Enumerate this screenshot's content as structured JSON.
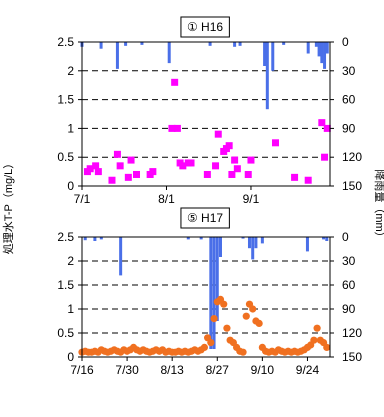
{
  "y_left_label": "処理水T-P（mg/L）",
  "y_right_label": "降雨量（mm）",
  "colors": {
    "rain": "#4A6FE8",
    "h16_points": "#FF00FF",
    "h17_points": "#F07020",
    "grid": "#000000"
  },
  "chart_data": [
    {
      "type": "scatter",
      "title": "① H16",
      "xlabel": "",
      "x_tick_labels": [
        "7/1",
        "8/1",
        "9/1"
      ],
      "x_tick_dates": [
        "2004-07-01",
        "2004-08-01",
        "2004-09-01"
      ],
      "xlim": [
        "2004-07-01",
        "2004-09-30"
      ],
      "ylim_left": [
        0,
        2.5
      ],
      "left_tick_labels": [
        "0",
        "0.5",
        "1",
        "1.5",
        "2",
        "2.5"
      ],
      "ylim_right_inverted": [
        0,
        150
      ],
      "right_tick_labels": [
        "0",
        "30",
        "60",
        "90",
        "120",
        "150"
      ],
      "grid": "dashed horizontal",
      "series": [
        {
          "kind": "points",
          "values": [
            [
              "2004-07-03",
              0.25
            ],
            [
              "2004-07-04",
              0.3
            ],
            [
              "2004-07-06",
              0.35
            ],
            [
              "2004-07-07",
              0.25
            ],
            [
              "2004-07-12",
              0.1
            ],
            [
              "2004-07-14",
              0.55
            ],
            [
              "2004-07-15",
              0.35
            ],
            [
              "2004-07-18",
              0.15
            ],
            [
              "2004-07-19",
              0.45
            ],
            [
              "2004-07-21",
              0.2
            ],
            [
              "2004-07-26",
              0.2
            ],
            [
              "2004-07-27",
              0.25
            ],
            [
              "2004-08-03",
              1.0
            ],
            [
              "2004-08-04",
              1.8
            ],
            [
              "2004-08-05",
              1.0
            ],
            [
              "2004-08-06",
              0.4
            ],
            [
              "2004-08-07",
              0.35
            ],
            [
              "2004-08-09",
              0.4
            ],
            [
              "2004-08-10",
              0.4
            ],
            [
              "2004-08-16",
              0.2
            ],
            [
              "2004-08-19",
              0.35
            ],
            [
              "2004-08-20",
              0.9
            ],
            [
              "2004-08-22",
              0.6
            ],
            [
              "2004-08-23",
              0.65
            ],
            [
              "2004-08-24",
              0.7
            ],
            [
              "2004-08-25",
              0.2
            ],
            [
              "2004-08-26",
              0.45
            ],
            [
              "2004-08-27",
              0.3
            ],
            [
              "2004-08-31",
              0.2
            ],
            [
              "2004-09-01",
              0.45
            ],
            [
              "2004-09-10",
              0.75
            ],
            [
              "2004-09-17",
              0.15
            ],
            [
              "2004-09-22",
              0.1
            ],
            [
              "2004-09-27",
              1.1
            ],
            [
              "2004-09-28",
              0.5
            ],
            [
              "2004-09-29",
              1.0
            ]
          ]
        },
        {
          "kind": "rain_bars_mm",
          "values": [
            [
              "2004-07-01",
              5
            ],
            [
              "2004-07-08",
              7
            ],
            [
              "2004-07-14",
              28
            ],
            [
              "2004-07-17",
              4
            ],
            [
              "2004-07-23",
              3
            ],
            [
              "2004-08-02",
              22
            ],
            [
              "2004-08-17",
              4
            ],
            [
              "2004-08-26",
              5
            ],
            [
              "2004-08-28",
              4
            ],
            [
              "2004-09-06",
              25
            ],
            [
              "2004-09-07",
              70
            ],
            [
              "2004-09-09",
              30
            ],
            [
              "2004-09-13",
              3
            ],
            [
              "2004-09-22",
              12
            ],
            [
              "2004-09-25",
              5
            ],
            [
              "2004-09-26",
              15
            ],
            [
              "2004-09-27",
              22
            ],
            [
              "2004-09-28",
              28
            ],
            [
              "2004-09-29",
              12
            ]
          ]
        }
      ]
    },
    {
      "type": "scatter",
      "title": "⑤ H17",
      "xlabel": "",
      "x_tick_labels": [
        "7/16",
        "7/30",
        "8/13",
        "8/27",
        "9/10",
        "9/24"
      ],
      "x_tick_dates": [
        "2005-07-16",
        "2005-07-30",
        "2005-08-13",
        "2005-08-27",
        "2005-09-10",
        "2005-09-24"
      ],
      "xlim": [
        "2005-07-16",
        "2005-10-01"
      ],
      "ylim_left": [
        0,
        2.5
      ],
      "left_tick_labels": [
        "0",
        "0.5",
        "1",
        "1.5",
        "2",
        "2.5"
      ],
      "ylim_right_inverted": [
        0,
        150
      ],
      "right_tick_labels": [
        "0",
        "30",
        "60",
        "90",
        "120",
        "150"
      ],
      "grid": "dashed horizontal",
      "series": [
        {
          "kind": "points",
          "values": [
            [
              "2005-07-16",
              0.1
            ],
            [
              "2005-07-17",
              0.12
            ],
            [
              "2005-07-18",
              0.1
            ],
            [
              "2005-07-19",
              0.1
            ],
            [
              "2005-07-20",
              0.12
            ],
            [
              "2005-07-21",
              0.1
            ],
            [
              "2005-07-22",
              0.15
            ],
            [
              "2005-07-23",
              0.12
            ],
            [
              "2005-07-24",
              0.1
            ],
            [
              "2005-07-25",
              0.12
            ],
            [
              "2005-07-26",
              0.15
            ],
            [
              "2005-07-27",
              0.12
            ],
            [
              "2005-07-28",
              0.1
            ],
            [
              "2005-07-29",
              0.15
            ],
            [
              "2005-07-30",
              0.12
            ],
            [
              "2005-07-31",
              0.15
            ],
            [
              "2005-08-01",
              0.2
            ],
            [
              "2005-08-02",
              0.15
            ],
            [
              "2005-08-03",
              0.12
            ],
            [
              "2005-08-04",
              0.15
            ],
            [
              "2005-08-05",
              0.12
            ],
            [
              "2005-08-06",
              0.1
            ],
            [
              "2005-08-07",
              0.12
            ],
            [
              "2005-08-08",
              0.15
            ],
            [
              "2005-08-09",
              0.12
            ],
            [
              "2005-08-10",
              0.15
            ],
            [
              "2005-08-11",
              0.1
            ],
            [
              "2005-08-12",
              0.12
            ],
            [
              "2005-08-13",
              0.1
            ],
            [
              "2005-08-14",
              0.1
            ],
            [
              "2005-08-15",
              0.12
            ],
            [
              "2005-08-16",
              0.1
            ],
            [
              "2005-08-17",
              0.12
            ],
            [
              "2005-08-18",
              0.1
            ],
            [
              "2005-08-19",
              0.12
            ],
            [
              "2005-08-20",
              0.15
            ],
            [
              "2005-08-21",
              0.12
            ],
            [
              "2005-08-22",
              0.15
            ],
            [
              "2005-08-23",
              0.2
            ],
            [
              "2005-08-24",
              0.4
            ],
            [
              "2005-08-25",
              0.3
            ],
            [
              "2005-08-26",
              0.8
            ],
            [
              "2005-08-27",
              1.15
            ],
            [
              "2005-08-28",
              1.2
            ],
            [
              "2005-08-29",
              1.1
            ],
            [
              "2005-08-30",
              0.6
            ],
            [
              "2005-08-31",
              0.35
            ],
            [
              "2005-09-01",
              0.3
            ],
            [
              "2005-09-02",
              0.2
            ],
            [
              "2005-09-03",
              0.12
            ],
            [
              "2005-09-04",
              0.1
            ],
            [
              "2005-09-05",
              0.85
            ],
            [
              "2005-09-06",
              1.1
            ],
            [
              "2005-09-07",
              1.0
            ],
            [
              "2005-09-08",
              0.75
            ],
            [
              "2005-09-09",
              0.7
            ],
            [
              "2005-09-10",
              0.2
            ],
            [
              "2005-09-11",
              0.12
            ],
            [
              "2005-09-12",
              0.1
            ],
            [
              "2005-09-13",
              0.12
            ],
            [
              "2005-09-14",
              0.1
            ],
            [
              "2005-09-15",
              0.15
            ],
            [
              "2005-09-16",
              0.12
            ],
            [
              "2005-09-17",
              0.1
            ],
            [
              "2005-09-18",
              0.12
            ],
            [
              "2005-09-19",
              0.1
            ],
            [
              "2005-09-20",
              0.12
            ],
            [
              "2005-09-21",
              0.1
            ],
            [
              "2005-09-22",
              0.12
            ],
            [
              "2005-09-23",
              0.15
            ],
            [
              "2005-09-24",
              0.2
            ],
            [
              "2005-09-25",
              0.25
            ],
            [
              "2005-09-26",
              0.35
            ],
            [
              "2005-09-27",
              0.6
            ],
            [
              "2005-09-28",
              0.35
            ],
            [
              "2005-09-29",
              0.3
            ],
            [
              "2005-09-30",
              0.2
            ]
          ]
        },
        {
          "kind": "rain_bars_mm",
          "values": [
            [
              "2005-07-17",
              4
            ],
            [
              "2005-07-20",
              5
            ],
            [
              "2005-07-22",
              3
            ],
            [
              "2005-07-28",
              48
            ],
            [
              "2005-08-18",
              3
            ],
            [
              "2005-08-22",
              3
            ],
            [
              "2005-08-25",
              140
            ],
            [
              "2005-08-26",
              140
            ],
            [
              "2005-08-27",
              105
            ],
            [
              "2005-08-28",
              25
            ],
            [
              "2005-09-04",
              2
            ],
            [
              "2005-09-06",
              14
            ],
            [
              "2005-09-07",
              28
            ],
            [
              "2005-09-08",
              14
            ],
            [
              "2005-09-10",
              8
            ],
            [
              "2005-09-24",
              18
            ],
            [
              "2005-09-29",
              3
            ],
            [
              "2005-09-30",
              5
            ]
          ]
        }
      ]
    }
  ]
}
